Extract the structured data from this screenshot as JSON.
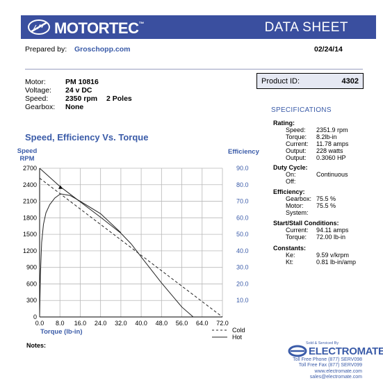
{
  "header": {
    "brand": "MOTORTEC",
    "trademark": "™",
    "doc_title": "DATA SHEET",
    "color": "#3a4f9f"
  },
  "prepared": {
    "label": "Prepared by:",
    "by": "Groschopp.com",
    "date": "02/24/14"
  },
  "motor_info": {
    "motor_label": "Motor:",
    "motor": "PM 10816",
    "voltage_label": "Voltage:",
    "voltage": "24 v DC",
    "speed_label": "Speed:",
    "speed": "2350 rpm",
    "poles": "2 Poles",
    "gearbox_label": "Gearbox:",
    "gearbox": "None"
  },
  "product": {
    "label": "Product ID:",
    "id": "4302"
  },
  "specs": {
    "title": "SPECIFICATIONS",
    "rating": {
      "heading": "Rating:",
      "rows": [
        {
          "k": "Speed:",
          "v": "2351.9 rpm"
        },
        {
          "k": "Torque:",
          "v": "8.2lb-in"
        },
        {
          "k": "Current:",
          "v": "11.78 amps"
        },
        {
          "k": "Output:",
          "v": "228 watts"
        },
        {
          "k": "Output:",
          "v": "0.3060 HP"
        }
      ]
    },
    "duty": {
      "heading": "Duty Cycle:",
      "rows": [
        {
          "k": "On:",
          "v": "Continuous"
        },
        {
          "k": "Off:",
          "v": ""
        }
      ]
    },
    "efficiency": {
      "heading": "Efficiency:",
      "rows": [
        {
          "k": "Gearbox:",
          "v": ""
        },
        {
          "k": "Motor:",
          "v": "75.5 %"
        },
        {
          "k": "System:",
          "v": "75.5 %"
        }
      ]
    },
    "startstall": {
      "heading": "Start/Stall Conditions:",
      "rows": [
        {
          "k": "Current:",
          "v": "94.11 amps"
        },
        {
          "k": "Torque:",
          "v": "72.00 lb-in"
        }
      ]
    },
    "constants": {
      "heading": "Constants:",
      "rows": [
        {
          "k": "Ke:",
          "v": "9.59 v/krpm"
        },
        {
          "k": "Kt:",
          "v": "0.81 lb-in/amp"
        }
      ]
    }
  },
  "notes_label": "Notes:",
  "footer": {
    "sold_by": "Sold & Serviced By",
    "company": "ELECTROMATE",
    "phone": "Toll Free Phone  (877) SERV098",
    "fax": "Toll Free Fax  (877) SERV099",
    "web": "www.electromate.com",
    "email": "sales@electromate.com"
  },
  "chart_data": {
    "type": "line",
    "title": "Speed, Efficiency Vs. Torque",
    "ylabel_left": [
      "Speed",
      "RPM"
    ],
    "ylabel_right": "Efficiency",
    "xlabel": "Torque  (lb-in)",
    "xlim": [
      0,
      72
    ],
    "ylim_left": [
      0,
      2700
    ],
    "ylim_right": [
      0,
      90
    ],
    "x_ticks": [
      "0.0",
      "8.0",
      "16.0",
      "24.0",
      "32.0",
      "40.0",
      "48.0",
      "56.0",
      "64.0",
      "72.0"
    ],
    "y_left_ticks": [
      "0",
      "300",
      "600",
      "900",
      "1200",
      "1500",
      "1800",
      "2100",
      "2400",
      "2700"
    ],
    "y_right_ticks": [
      "10.0",
      "20.0",
      "30.0",
      "40.0",
      "50.0",
      "60.0",
      "70.0",
      "80.0",
      "90.0"
    ],
    "grid": true,
    "legend": [
      {
        "name": "Cold",
        "style": "dashed"
      },
      {
        "name": "Hot",
        "style": "solid"
      }
    ],
    "series": [
      {
        "name": "Cold",
        "axis": "left",
        "style": "dashed",
        "x": [
          0,
          72
        ],
        "y": [
          2520,
          0
        ]
      },
      {
        "name": "Hot",
        "axis": "left",
        "style": "solid",
        "x": [
          0,
          8,
          16,
          24,
          32,
          36,
          40,
          48,
          56,
          60.5
        ],
        "y": [
          2700,
          2370,
          2090,
          1810,
          1520,
          1330,
          1090,
          620,
          180,
          0
        ]
      },
      {
        "name": "Efficiency",
        "axis": "right",
        "style": "solid",
        "x": [
          0,
          0.3,
          0.8,
          1.5,
          2.5,
          4,
          6,
          8.2,
          12,
          16,
          24,
          32
        ],
        "y": [
          0,
          25,
          45,
          56,
          63,
          68,
          72,
          74.5,
          73.5,
          70,
          62.5,
          51
        ]
      }
    ],
    "marker": {
      "x": 8.2,
      "y": 2352
    }
  }
}
